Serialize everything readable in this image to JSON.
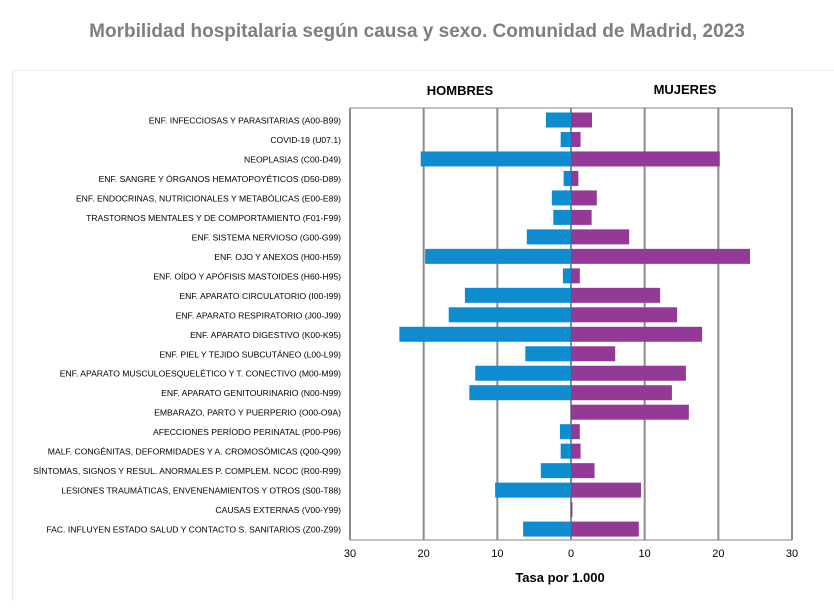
{
  "chart_data": {
    "type": "bar",
    "orientation": "horizontal",
    "layout": "population-pyramid",
    "title": "Morbilidad hospitalaria según causa y sexo. Comunidad de Madrid, 2023",
    "xlabel": "Tasa por 1.000",
    "xlim": [
      -30,
      30
    ],
    "xticks": [
      -30,
      -20,
      -10,
      0,
      10,
      20,
      30
    ],
    "xtick_labels": [
      "30",
      "20",
      "10",
      "0",
      "10",
      "20",
      "30"
    ],
    "grid": "vertical",
    "categories": [
      "ENF. INFECCIOSAS Y PARASITARIAS (A00-B99)",
      "COVID-19 (U07.1)",
      "NEOPLASIAS (C00-D49)",
      "ENF. SANGRE Y ÓRGANOS HEMATOPOYÉTICOS (D50-D89)",
      "ENF. ENDOCRINAS, NUTRICIONALES Y METABÓLICAS (E00-E89)",
      "TRASTORNOS MENTALES Y DE COMPORTAMIENTO (F01-F99)",
      "ENF.  SISTEMA NERVIOSO (G00-G99)",
      "ENF.  OJO Y  ANEXOS (H00-H59)",
      "ENF. OÍDO Y  APÓFISIS MASTOIDES (H60-H95)",
      "ENF. APARATO CIRCULATORIO (I00-I99)",
      "ENF. APARATO RESPIRATORIO (J00-J99)",
      "ENF. APARATO DIGESTIVO (K00-K95)",
      "ENF. PIEL Y TEJIDO SUBCUTÁNEO (L00-L99)",
      "ENF. APARATO MUSCULOESQUELÉTICO Y  T. CONECTIVO (M00-M99)",
      "ENF. APARATO GENITOURINARIO (N00-N99)",
      "EMBARAZO, PARTO Y PUERPERIO (O00-O9A)",
      "AFECCIONES PERÍODO PERINATAL (P00-P96)",
      "MALF. CONGÉNITAS, DEFORMIDADES Y A. CROMOSÓMICAS (Q00-Q99)",
      "SÍNTOMAS, SIGNOS Y RESUL. ANORMALES  P. COMPLEM. NCOC (R00-R99)",
      "LESIONES TRAUMÁTICAS, ENVENENAMIENTOS Y OTROS (S00-T88)",
      "CAUSAS EXTERNAS (V00-Y99)",
      "FAC. INFLUYEN ESTADO SALUD Y CONTACTO S. SANITARIOS (Z00-Z99)"
    ],
    "series": [
      {
        "name": "HOMBRES",
        "color": "#0E8CCF",
        "values": [
          3.4,
          1.4,
          20.4,
          1.0,
          2.6,
          2.4,
          6.0,
          19.8,
          1.1,
          14.4,
          16.6,
          23.3,
          6.2,
          13.0,
          13.8,
          0,
          1.5,
          1.4,
          4.1,
          10.3,
          0,
          6.5
        ]
      },
      {
        "name": "MUJERES",
        "color": "#933A96",
        "values": [
          2.85,
          1.3,
          20.2,
          1.0,
          3.5,
          2.8,
          7.9,
          24.3,
          1.2,
          12.1,
          14.4,
          17.8,
          6.0,
          15.6,
          13.7,
          16.0,
          1.2,
          1.3,
          3.2,
          9.5,
          0.2,
          9.2
        ]
      }
    ]
  }
}
